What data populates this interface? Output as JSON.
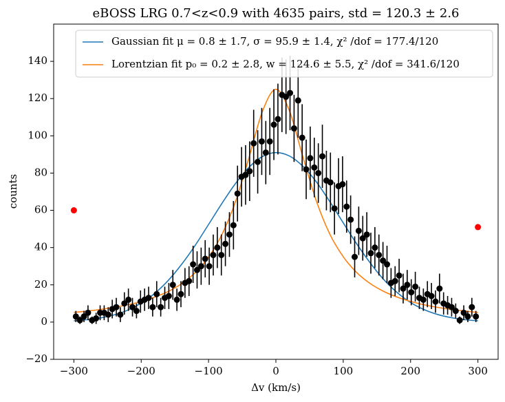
{
  "chart_data": {
    "type": "scatter",
    "title": "eBOSS LRG 0.7<z<0.9 with 4635 pairs, std = 120.3 ± 2.6",
    "xlabel": "Δv (km/s)",
    "ylabel": "counts",
    "xlim": [
      -330,
      330
    ],
    "ylim": [
      -20,
      160
    ],
    "xticks": [
      {
        "value": -300,
        "label": "−300"
      },
      {
        "value": -200,
        "label": "−200"
      },
      {
        "value": -100,
        "label": "−100"
      },
      0,
      100,
      200,
      300
    ],
    "yticks": [
      {
        "value": -20,
        "label": "−20"
      },
      0,
      20,
      40,
      60,
      80,
      100,
      120,
      140
    ],
    "color": "#000000",
    "x": [
      -297,
      -291,
      -285,
      -279,
      -273,
      -267,
      -261,
      -255,
      -249,
      -243,
      -237,
      -231,
      -225,
      -219,
      -213,
      -207,
      -201,
      -195,
      -189,
      -183,
      -177,
      -171,
      -165,
      -159,
      -153,
      -147,
      -141,
      -135,
      -129,
      -123,
      -117,
      -111,
      -105,
      -99,
      -93,
      -87,
      -81,
      -75,
      -69,
      -63,
      -57,
      -51,
      -45,
      -39,
      -33,
      -27,
      -21,
      -15,
      -9,
      -3,
      3,
      9,
      15,
      21,
      27,
      33,
      39,
      45,
      51,
      57,
      63,
      69,
      75,
      81,
      87,
      93,
      99,
      105,
      111,
      117,
      123,
      129,
      135,
      141,
      147,
      153,
      159,
      165,
      171,
      177,
      183,
      189,
      195,
      201,
      207,
      213,
      219,
      225,
      231,
      237,
      243,
      249,
      255,
      261,
      267,
      273,
      279,
      285,
      291,
      297
    ],
    "values": [
      3,
      1,
      3,
      5,
      1,
      2,
      5,
      5,
      4,
      7,
      8,
      4,
      10,
      12,
      8,
      6,
      11,
      12,
      13,
      8,
      15,
      8,
      13,
      14,
      20,
      12,
      15,
      21,
      22,
      31,
      28,
      30,
      34,
      30,
      36,
      40,
      36,
      42,
      47,
      52,
      69,
      78,
      79,
      81,
      96,
      86,
      97,
      91,
      97,
      106,
      109,
      122,
      121,
      123,
      104,
      119,
      99,
      82,
      88,
      83,
      80,
      89,
      76,
      75,
      61,
      73,
      74,
      62,
      55,
      35,
      49,
      45,
      47,
      37,
      40,
      36,
      33,
      31,
      21,
      22,
      25,
      18,
      20,
      16,
      19,
      13,
      12,
      15,
      14,
      11,
      18,
      10,
      9,
      8,
      6,
      1,
      5,
      3,
      8,
      3
    ],
    "errors": [
      3,
      2,
      3,
      4,
      2,
      3,
      4,
      4,
      4,
      5,
      5,
      4,
      6,
      6,
      5,
      4,
      6,
      6,
      6,
      5,
      7,
      5,
      6,
      7,
      8,
      6,
      7,
      8,
      8,
      10,
      10,
      10,
      10,
      10,
      11,
      11,
      11,
      12,
      12,
      13,
      15,
      16,
      16,
      16,
      18,
      17,
      18,
      17,
      18,
      19,
      19,
      20,
      20,
      20,
      18,
      20,
      18,
      16,
      17,
      16,
      16,
      17,
      16,
      16,
      14,
      15,
      15,
      14,
      13,
      11,
      13,
      12,
      12,
      11,
      11,
      11,
      10,
      10,
      8,
      8,
      9,
      8,
      8,
      7,
      8,
      6,
      6,
      7,
      7,
      6,
      8,
      6,
      5,
      5,
      4,
      2,
      4,
      3,
      5,
      3
    ],
    "outliers": {
      "color": "#ff0000",
      "x": [
        -300,
        300
      ],
      "values": [
        60,
        51
      ]
    },
    "series": [
      {
        "name": "Gaussian fit μ = 0.8 ± 1.7,  σ = 95.9 ± 1.4, χ² /dof = 177.4/120",
        "color": "#1f77b4",
        "x": [
          -300,
          -280,
          -260,
          -240,
          -220,
          -200,
          -180,
          -160,
          -140,
          -120,
          -100,
          -80,
          -60,
          -40,
          -20,
          0,
          20,
          40,
          60,
          80,
          100,
          120,
          140,
          160,
          180,
          200,
          220,
          240,
          260,
          280,
          300
        ],
        "values": [
          0.7,
          1.3,
          2.3,
          3.9,
          6.4,
          10.2,
          15.4,
          22.3,
          31.0,
          41.1,
          52.4,
          63.8,
          74.4,
          83.1,
          88.9,
          91.0,
          89.2,
          83.7,
          75.3,
          64.7,
          53.3,
          42.0,
          31.8,
          22.9,
          15.9,
          10.5,
          6.7,
          4.1,
          2.4,
          1.3,
          0.7
        ]
      },
      {
        "name": "Lorentzian fit p₀ = 0.2 ± 2.8, w = 124.6 ± 5.5, χ² /dof = 341.6/120",
        "color": "#ff7f0e",
        "x": [
          -300,
          -280,
          -260,
          -240,
          -220,
          -200,
          -180,
          -160,
          -140,
          -120,
          -100,
          -80,
          -60,
          -40,
          -20,
          0,
          20,
          40,
          60,
          80,
          100,
          120,
          140,
          160,
          180,
          200,
          220,
          240,
          260,
          280,
          300
        ],
        "values": [
          5.2,
          5.9,
          6.8,
          7.9,
          9.3,
          11.0,
          13.4,
          16.4,
          20.6,
          26.5,
          34.9,
          47.1,
          64.7,
          88.3,
          113.1,
          125.0,
          113.5,
          88.8,
          65.1,
          47.3,
          35.1,
          26.6,
          20.7,
          16.5,
          13.4,
          11.1,
          9.3,
          7.9,
          6.8,
          5.9,
          5.2
        ]
      }
    ],
    "legend": "upper right"
  }
}
